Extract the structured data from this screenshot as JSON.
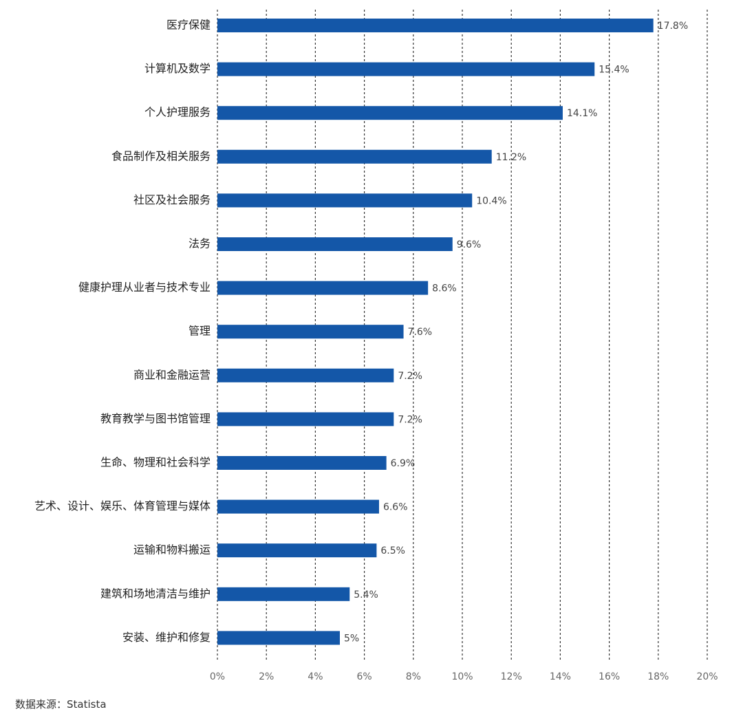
{
  "colors": {
    "bar": "#1457a8",
    "grid": "#333333",
    "axis_text": "#666666",
    "category_text": "#222222",
    "value_text": "#444444"
  },
  "chart_data": {
    "type": "bar",
    "orientation": "horizontal",
    "categories": [
      "医疗保健",
      "计算机及数学",
      "个人护理服务",
      "食品制作及相关服务",
      "社区及社会服务",
      "法务",
      "健康护理从业者与技术专业",
      "管理",
      "商业和金融运营",
      "教育教学与图书馆管理",
      "生命、物理和社会科学",
      "艺术、设计、娱乐、体育管理与媒体",
      "运输和物料搬运",
      "建筑和场地清洁与维护",
      "安装、维护和修复"
    ],
    "values": [
      17.8,
      15.4,
      14.1,
      11.2,
      10.4,
      9.6,
      8.6,
      7.6,
      7.2,
      7.2,
      6.9,
      6.6,
      6.5,
      5.4,
      5
    ],
    "value_labels": [
      "17.8%",
      "15.4%",
      "14.1%",
      "11.2%",
      "10.4%",
      "9.6%",
      "8.6%",
      "7.6%",
      "7.2%",
      "7.2%",
      "6.9%",
      "6.6%",
      "6.5%",
      "5.4%",
      "5%"
    ],
    "xlim": [
      0,
      20
    ],
    "xticks": [
      0,
      2,
      4,
      6,
      8,
      10,
      12,
      14,
      16,
      18,
      20
    ],
    "xtick_labels": [
      "0%",
      "2%",
      "4%",
      "6%",
      "8%",
      "10%",
      "12%",
      "14%",
      "16%",
      "18%",
      "20%"
    ],
    "grid": "vertical-dashed",
    "legend": "none"
  },
  "source": "数据来源：Statista"
}
